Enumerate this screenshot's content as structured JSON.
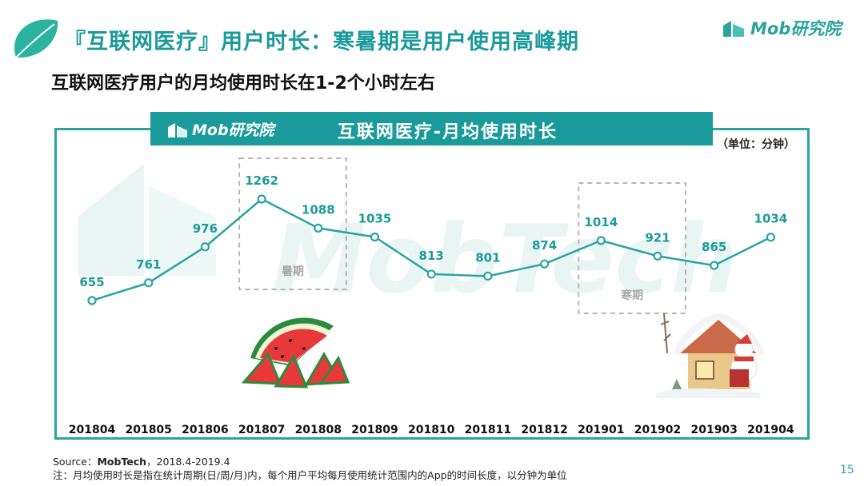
{
  "page": {
    "title": "『互联网医疗』用户时长：寒暑期是用户使用高峰期",
    "subtitle": "互联网医疗用户的月均使用时长在1-2个小时左右",
    "brand": "Mob研究院",
    "watermark": "MobTech",
    "page_number": "15",
    "source_label": "Source：",
    "source_name": "MobTech",
    "source_range": "，2018.4-2019.4",
    "note": "注：月均使用时长是指在统计周期(日/周/月)内，每个用户平均每月使用统计范围内的App的时间长度，以分钟为单位"
  },
  "chart_data": {
    "type": "line",
    "title": "互联网医疗-月均使用时长",
    "unit_label": "（单位：分钟）",
    "categories": [
      "201804",
      "201805",
      "201806",
      "201807",
      "201808",
      "201809",
      "201810",
      "201811",
      "201812",
      "201901",
      "201902",
      "201903",
      "201904"
    ],
    "values": [
      655,
      761,
      976,
      1262,
      1088,
      1035,
      813,
      801,
      874,
      1014,
      921,
      865,
      1034
    ],
    "annotations": [
      {
        "label": "暑期",
        "categories": [
          "201807",
          "201808"
        ]
      },
      {
        "label": "寒期",
        "categories": [
          "201901",
          "201902"
        ]
      }
    ],
    "line_color": "#2aa3a3",
    "accent_color": "#1a9a9a",
    "grid": false
  }
}
